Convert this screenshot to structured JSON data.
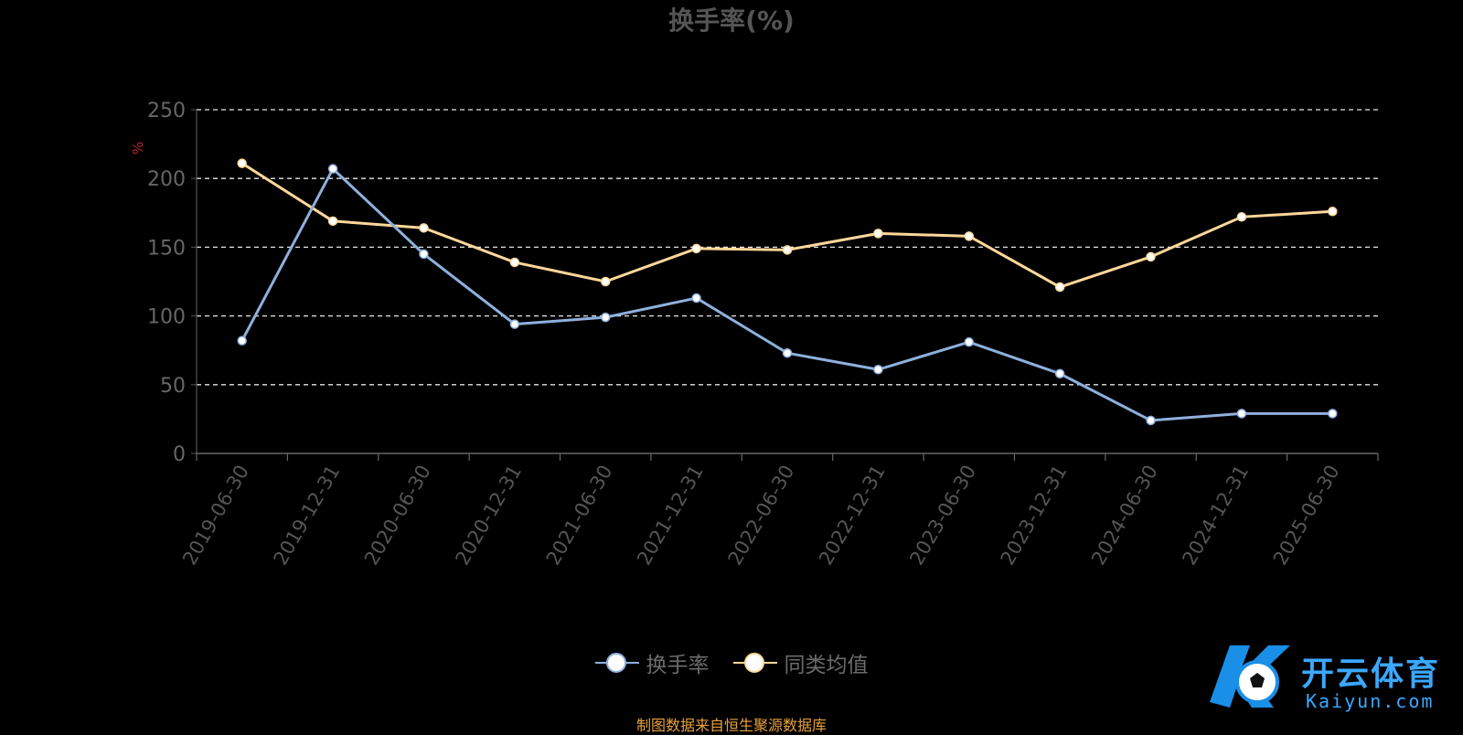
{
  "chart_data": {
    "type": "line",
    "title": "换手率(%)",
    "ylabel": "%",
    "xlabel": "",
    "ylim": [
      0,
      250
    ],
    "yticks": [
      0,
      50,
      100,
      150,
      200,
      250
    ],
    "grid": true,
    "categories": [
      "2019-06-30",
      "2019-12-31",
      "2020-06-30",
      "2020-12-31",
      "2021-06-30",
      "2021-12-31",
      "2022-06-30",
      "2022-12-31",
      "2023-06-30",
      "2023-12-31",
      "2024-06-30",
      "2024-12-31",
      "2025-06-30"
    ],
    "series": [
      {
        "name": "换手率",
        "color": "#8eb0dd",
        "values": [
          82,
          207,
          145,
          94,
          99,
          113,
          73,
          61,
          81,
          58,
          24,
          29,
          29
        ]
      },
      {
        "name": "同类均值",
        "color": "#ffd79a",
        "values": [
          211,
          169,
          164,
          139,
          125,
          149,
          148,
          160,
          158,
          121,
          143,
          172,
          176
        ]
      }
    ],
    "legend_position": "bottom-center"
  },
  "footer": {
    "source": "制图数据来自恒生聚源数据库"
  },
  "watermark": {
    "brand": "开云体育",
    "site": "Kaiyun.com"
  }
}
